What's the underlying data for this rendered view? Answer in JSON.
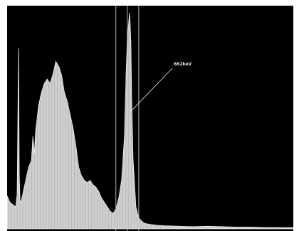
{
  "chart_data": {
    "type": "area",
    "title": "",
    "xlabel": "",
    "ylabel": "",
    "xlim": [
      0,
      400
    ],
    "ylim": [
      0,
      100
    ],
    "grid": false,
    "colors": {
      "background": "#000000",
      "fill": "#cfcfcf",
      "stroke": "#f2f2f2",
      "marker": "#c8c8c8",
      "annotation": "#e8e8e8"
    },
    "x": [
      0,
      4,
      8,
      12,
      14,
      16,
      17,
      18,
      19,
      20,
      22,
      26,
      30,
      34,
      36,
      38,
      40,
      44,
      48,
      52,
      56,
      60,
      64,
      68,
      72,
      76,
      78,
      80,
      84,
      88,
      92,
      96,
      100,
      104,
      108,
      112,
      116,
      120,
      124,
      128,
      132,
      136,
      140,
      144,
      148,
      152,
      156,
      160,
      164,
      166,
      168,
      170,
      171,
      172,
      173,
      174,
      176,
      180,
      184,
      188,
      192,
      200,
      210,
      220,
      240,
      260,
      280,
      300,
      320,
      340,
      360,
      380,
      400
    ],
    "values": [
      15,
      12,
      11,
      10,
      16,
      82,
      24,
      13,
      12,
      13,
      16,
      22,
      28,
      31,
      42,
      34,
      45,
      56,
      62,
      66,
      68,
      66,
      70,
      76,
      74,
      70,
      66,
      62,
      58,
      52,
      46,
      38,
      28,
      24,
      22,
      21,
      22,
      20,
      19,
      17,
      14,
      12,
      10,
      8,
      7,
      9,
      14,
      22,
      42,
      68,
      86,
      94,
      98,
      93,
      84,
      62,
      32,
      10,
      5,
      3.5,
      2.5,
      2,
      1.6,
      1.4,
      1.2,
      1.0,
      1.2,
      1.0,
      0.8,
      0.8,
      0.6,
      0.6,
      0.5
    ],
    "markers": [
      152,
      168,
      184
    ],
    "annotations": [
      {
        "text": "662keV",
        "x": 172,
        "y": 53
      }
    ]
  }
}
